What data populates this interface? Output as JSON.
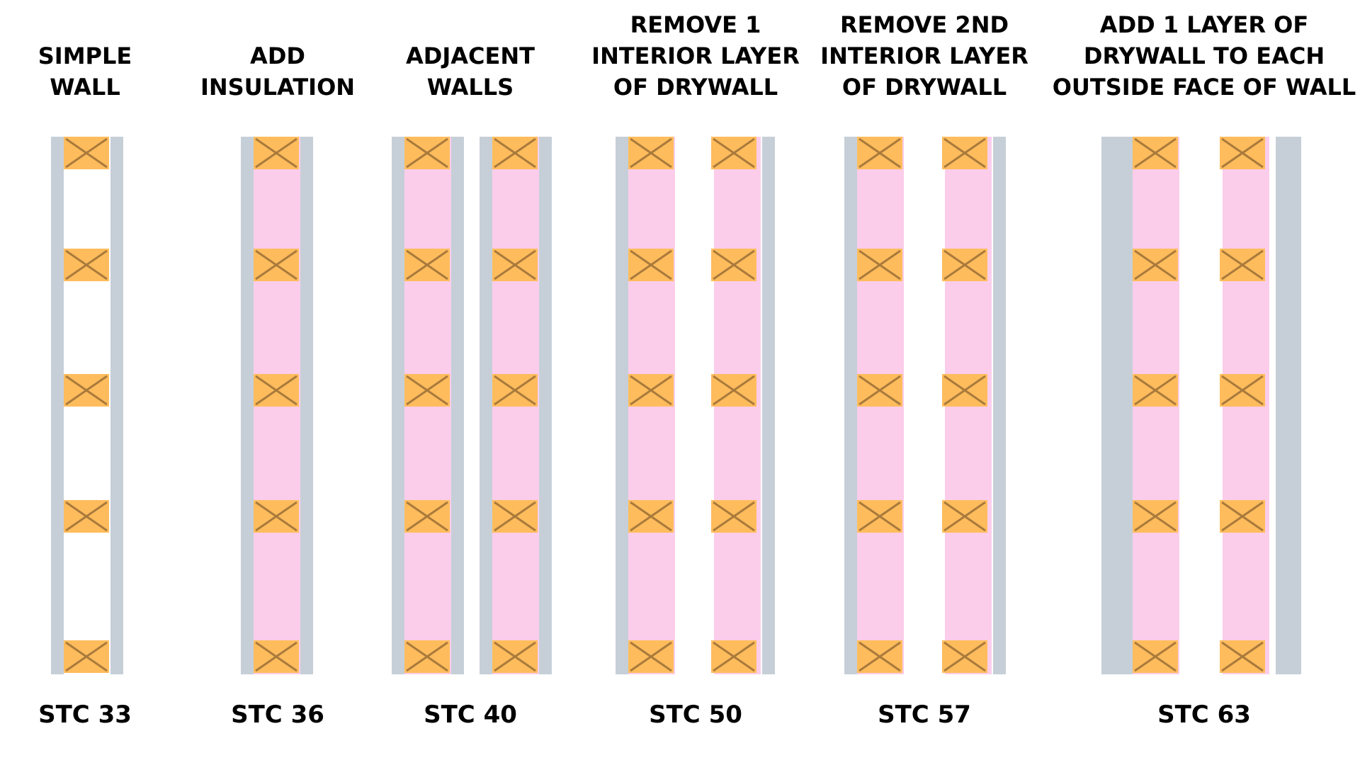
{
  "colors": {
    "drywall": "#c6cfd8",
    "insulation": "#fbcdea",
    "stud": "#ffbc5c",
    "stud_cross": "#a97a3c",
    "text": "#000000",
    "background": "#ffffff"
  },
  "walls": [
    {
      "title_lines": [
        "SIMPLE",
        "WALL"
      ],
      "rating": "STC 33"
    },
    {
      "title_lines": [
        "ADD",
        "INSULATION"
      ],
      "rating": "STC 36"
    },
    {
      "title_lines": [
        "ADJACENT",
        "WALLS"
      ],
      "rating": "STC 40"
    },
    {
      "title_lines": [
        "REMOVE 1",
        "INTERIOR LAYER",
        "OF DRYWALL"
      ],
      "rating": "STC 50"
    },
    {
      "title_lines": [
        "REMOVE 2ND",
        "INTERIOR LAYER",
        "OF DRYWALL"
      ],
      "rating": "STC 57"
    },
    {
      "title_lines": [
        "ADD 1 LAYER OF",
        "DRYWALL TO EACH",
        "OUTSIDE FACE OF WALL"
      ],
      "rating": "STC 63"
    }
  ]
}
